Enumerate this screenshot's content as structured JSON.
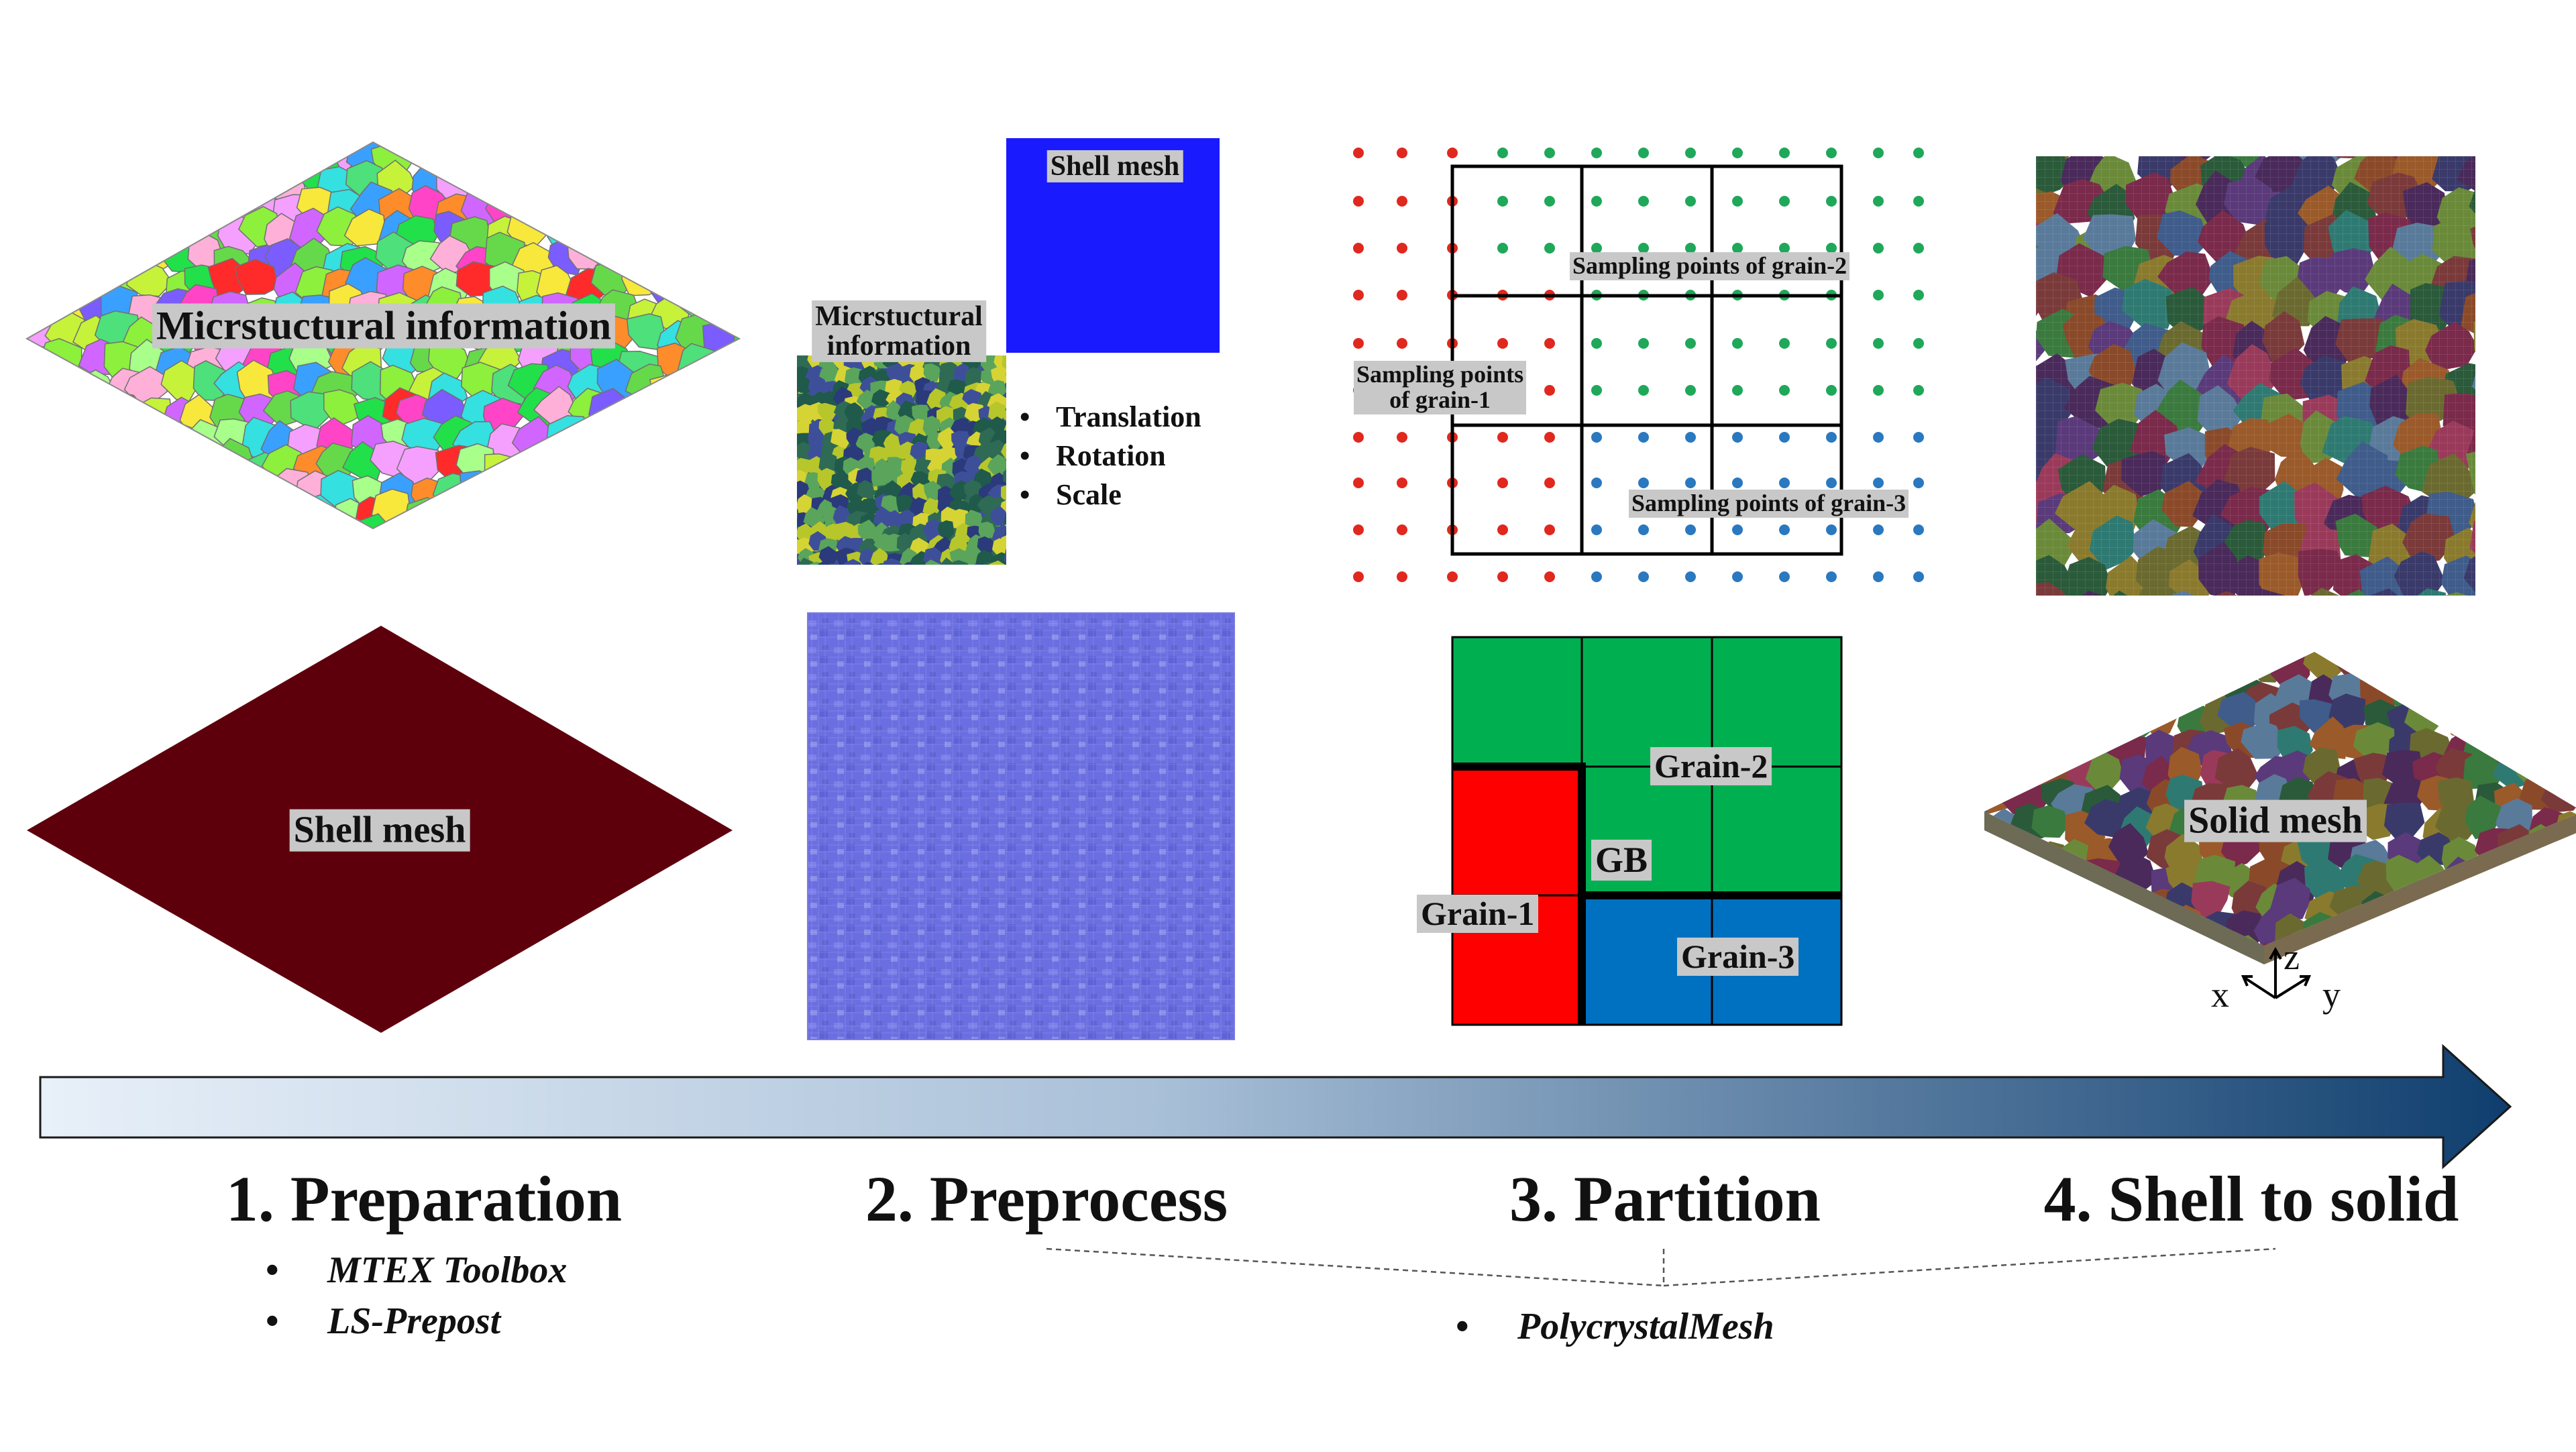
{
  "panel1": {
    "micro_label": "Micrstuctural information",
    "shell_label": "Shell mesh"
  },
  "panel2": {
    "shell_label": "Shell mesh",
    "micro_label_line1": "Micrstuctural",
    "micro_label_line2": "information",
    "bullets": [
      "Translation",
      "Rotation",
      "Scale"
    ]
  },
  "panel3": {
    "sampling_grain1_line1": "Sampling points",
    "sampling_grain1_line2": "of grain-1",
    "sampling_grain2": "Sampling points of grain-2",
    "sampling_grain3": "Sampling points of grain-3",
    "grain1": "Grain-1",
    "grain2": "Grain-2",
    "grain3": "Grain-3",
    "gb": "GB",
    "colors": {
      "grain1": "#ff0000",
      "grain2": "#00b050",
      "grain3": "#0070c0",
      "dot_red": "#e0281e",
      "dot_green": "#1fa85a",
      "dot_blue": "#2a78c0"
    }
  },
  "panel4": {
    "solid_label": "Solid mesh",
    "axis_x": "x",
    "axis_y": "y",
    "axis_z": "z"
  },
  "steps": [
    "1. Preparation",
    "2. Preprocess",
    "3. Partition",
    "4. Shell to solid"
  ],
  "tools_prep": [
    "MTEX Toolbox",
    "LS-Prepost"
  ],
  "tools_poly": "PolycrystalMesh",
  "colors": {
    "shell_mesh": "#5e000c",
    "shell_blue": "#1a1aff",
    "arrow_start": "#e6eef8",
    "arrow_end": "#0f3e6e"
  }
}
